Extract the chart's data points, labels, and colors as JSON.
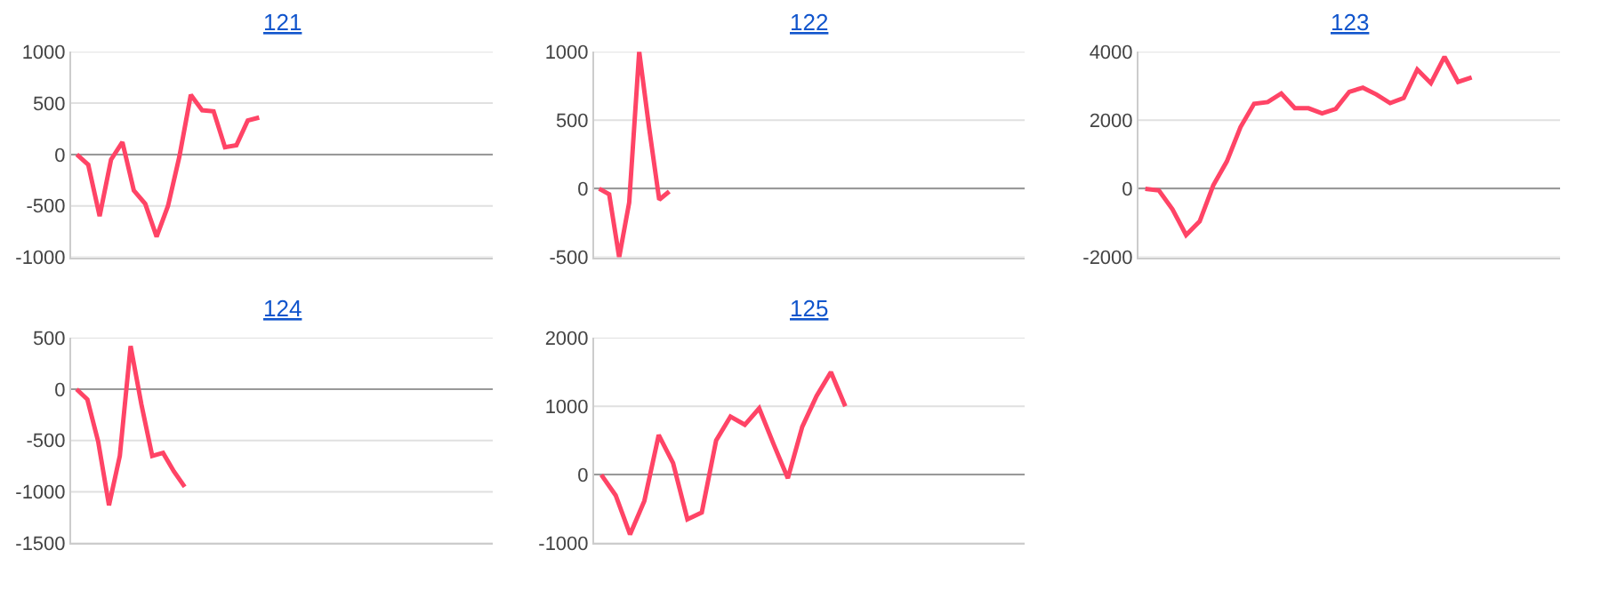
{
  "chart_data": [
    {
      "type": "line",
      "title": "121",
      "color": "#ff4466",
      "grid": "y",
      "tick_labels": "y",
      "ylim": [
        -1000,
        1000
      ],
      "yticks": [
        -1000,
        -500,
        0,
        500,
        1000
      ],
      "categories": [
        null,
        null,
        null,
        null,
        null,
        null,
        null,
        null,
        null,
        null,
        null,
        null,
        null,
        null,
        null,
        null,
        null,
        null,
        null,
        null,
        null,
        null,
        null,
        null,
        null,
        null,
        null,
        null,
        null,
        null,
        null,
        null,
        null,
        null,
        null,
        null,
        null
      ],
      "values": [
        0,
        -100,
        -600,
        -50,
        120,
        -350,
        -480,
        -800,
        -500,
        -20,
        580,
        430,
        420,
        70,
        90,
        330,
        360,
        null,
        null,
        null,
        null,
        null,
        null,
        null,
        null,
        null,
        null,
        null,
        null,
        null,
        null,
        null,
        null,
        null,
        null,
        null,
        null
      ]
    },
    {
      "type": "line",
      "title": "122",
      "color": "#ff4466",
      "grid": "y",
      "tick_labels": "y",
      "ylim": [
        -500,
        1000
      ],
      "yticks": [
        -500,
        0,
        500,
        1000
      ],
      "categories": [
        null,
        null,
        null,
        null,
        null,
        null,
        null,
        null,
        null,
        null,
        null,
        null,
        null,
        null,
        null,
        null,
        null,
        null,
        null,
        null,
        null,
        null,
        null,
        null,
        null,
        null,
        null,
        null,
        null,
        null,
        null,
        null,
        null,
        null,
        null,
        null,
        null,
        null,
        null,
        null,
        null,
        null,
        null
      ],
      "values": [
        0,
        -40,
        -500,
        -100,
        1000,
        440,
        -80,
        -20,
        null,
        null,
        null,
        null,
        null,
        null,
        null,
        null,
        null,
        null,
        null,
        null,
        null,
        null,
        null,
        null,
        null,
        null,
        null,
        null,
        null,
        null,
        null,
        null,
        null,
        null,
        null,
        null,
        null,
        null,
        null,
        null,
        null,
        null,
        null
      ]
    },
    {
      "type": "line",
      "title": "123",
      "color": "#ff4466",
      "grid": "y",
      "tick_labels": "y",
      "ylim": [
        -2000,
        4000
      ],
      "yticks": [
        -2000,
        0,
        2000,
        4000
      ],
      "categories": [
        null,
        null,
        null,
        null,
        null,
        null,
        null,
        null,
        null,
        null,
        null,
        null,
        null,
        null,
        null,
        null,
        null,
        null,
        null,
        null,
        null,
        null,
        null,
        null,
        null,
        null,
        null,
        null,
        null,
        null,
        null
      ],
      "values": [
        0,
        -50,
        -600,
        -1350,
        -950,
        100,
        800,
        1800,
        2480,
        2530,
        2780,
        2350,
        2350,
        2200,
        2330,
        2830,
        2950,
        2750,
        2500,
        2650,
        3480,
        3080,
        3850,
        3120,
        3250,
        null,
        null,
        null,
        null,
        null,
        null
      ]
    },
    {
      "type": "line",
      "title": "124",
      "color": "#ff4466",
      "grid": "y",
      "tick_labels": "y",
      "ylim": [
        -1500,
        500
      ],
      "yticks": [
        -1500,
        -1000,
        -500,
        0,
        500
      ],
      "categories": [
        null,
        null,
        null,
        null,
        null,
        null,
        null,
        null,
        null,
        null,
        null,
        null,
        null,
        null,
        null,
        null,
        null,
        null,
        null,
        null,
        null,
        null,
        null,
        null,
        null,
        null,
        null,
        null,
        null,
        null,
        null,
        null,
        null,
        null,
        null,
        null,
        null,
        null,
        null
      ],
      "values": [
        0,
        -100,
        -510,
        -1130,
        -650,
        420,
        -150,
        -650,
        -620,
        -800,
        -950,
        null,
        null,
        null,
        null,
        null,
        null,
        null,
        null,
        null,
        null,
        null,
        null,
        null,
        null,
        null,
        null,
        null,
        null,
        null,
        null,
        null,
        null,
        null,
        null,
        null,
        null,
        null,
        null
      ]
    },
    {
      "type": "line",
      "title": "125",
      "color": "#ff4466",
      "grid": "y",
      "tick_labels": "y",
      "ylim": [
        -1000,
        2000
      ],
      "yticks": [
        -1000,
        0,
        1000,
        2000
      ],
      "categories": [
        null,
        null,
        null,
        null,
        null,
        null,
        null,
        null,
        null,
        null,
        null,
        null,
        null,
        null,
        null,
        null,
        null,
        null,
        null,
        null,
        null,
        null,
        null,
        null,
        null,
        null,
        null,
        null,
        null,
        null
      ],
      "values": [
        0,
        -300,
        -870,
        -380,
        580,
        170,
        -650,
        -550,
        500,
        850,
        730,
        970,
        450,
        -50,
        700,
        1150,
        1500,
        1000,
        null,
        null,
        null,
        null,
        null,
        null,
        null,
        null,
        null,
        null,
        null,
        null
      ]
    }
  ]
}
